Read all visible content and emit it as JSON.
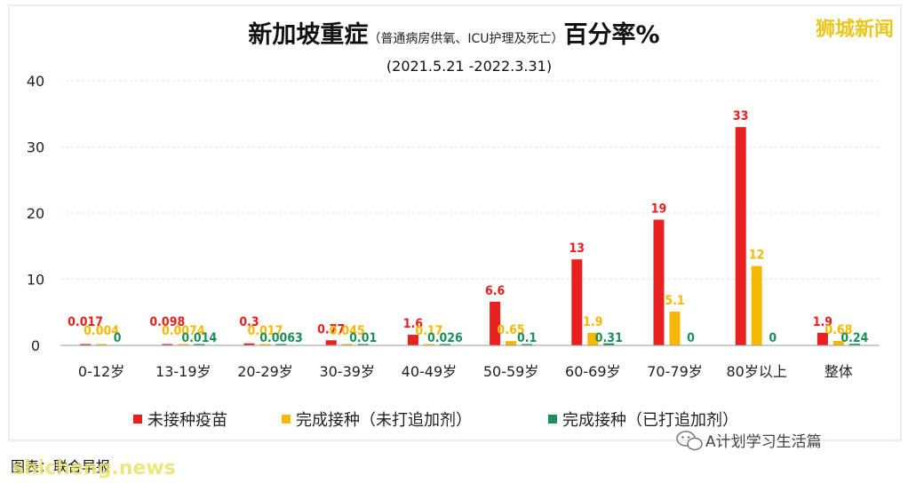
{
  "header": {
    "title_main": "新加坡重症",
    "title_paren": "（普通病房供氧、ICU护理及死亡）",
    "title_suffix": "百分率%",
    "date_range": "(2021.5.21 -2022.3.31)",
    "watermark": "狮城新闻"
  },
  "footer": {
    "source": "图表：联合早报",
    "source_watermark": "shicheng.news",
    "wechat_label": "A计划学习生活篇"
  },
  "colors": {
    "unvaccinated": "#e8201f",
    "no_booster": "#f6b800",
    "booster": "#1a8f5a",
    "grid": "#e3e3e3",
    "axis": "#999999"
  },
  "chart_data": {
    "type": "bar",
    "title": "新加坡重症（普通病房供氧、ICU护理及死亡）百分率%",
    "subtitle": "(2021.5.21 -2022.3.31)",
    "xlabel": "",
    "ylabel": "",
    "ylim": [
      0,
      40
    ],
    "yticks": [
      "0",
      "10",
      "20",
      "30",
      "40"
    ],
    "grid": true,
    "legend_position": "bottom",
    "categories": [
      "0-12岁",
      "13-19岁",
      "20-29岁",
      "30-39岁",
      "40-49岁",
      "50-59岁",
      "60-69岁",
      "70-79岁",
      "80岁以上",
      "整体"
    ],
    "series": [
      {
        "name": "未接种疫苗",
        "color": "#e8201f",
        "values": [
          0.017,
          0.098,
          0.3,
          0.77,
          1.6,
          6.6,
          13,
          19,
          33,
          1.9
        ],
        "labels": [
          "0.017",
          "0.098",
          "0.3",
          "0.77",
          "1.6",
          "6.6",
          "13",
          "19",
          "33",
          "1.9"
        ]
      },
      {
        "name": "完成接种（未打追加剂）",
        "color": "#f6b800",
        "values": [
          0.004,
          0.0074,
          0.017,
          0.045,
          0.17,
          0.65,
          1.9,
          5.1,
          12,
          0.68
        ],
        "labels": [
          "0.004",
          "0.0074",
          "0.017",
          "0.045",
          "0.17",
          "0.65",
          "1.9",
          "5.1",
          "12",
          "0.68"
        ]
      },
      {
        "name": "完成接种（已打追加剂）",
        "color": "#1a8f5a",
        "values": [
          0,
          0.014,
          0.0063,
          0.01,
          0.026,
          0.1,
          0.31,
          0,
          0,
          0.24
        ],
        "labels": [
          "0",
          "0.014",
          "0.0063",
          "0.01",
          "0.026",
          "0.1",
          "0.31",
          "0",
          "0",
          "0.24"
        ]
      }
    ]
  }
}
